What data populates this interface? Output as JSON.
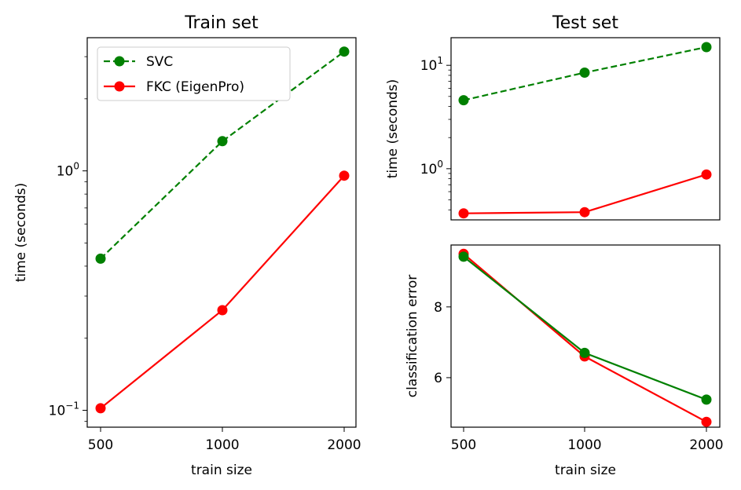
{
  "chart_data": [
    {
      "type": "line",
      "title": "Train set",
      "xlabel": "train size",
      "ylabel": "time (seconds)",
      "x": [
        500,
        1000,
        2000
      ],
      "xscale": "categorical",
      "yscale": "log",
      "ylim": [
        0.085,
        3.6
      ],
      "yticks": [
        {
          "value": 0.1,
          "base": "10",
          "exp": "−1"
        },
        {
          "value": 1,
          "base": "10",
          "exp": "0"
        }
      ],
      "legend": {
        "position": "top-left"
      },
      "series": [
        {
          "name": "SVC",
          "color": "#008000",
          "dashed": true,
          "values": [
            0.43,
            1.33,
            3.15
          ]
        },
        {
          "name": "FKC (EigenPro)",
          "color": "#ff0000",
          "dashed": false,
          "values": [
            0.102,
            0.262,
            0.955
          ]
        }
      ]
    },
    {
      "type": "line",
      "title": "Test set",
      "xlabel": "",
      "ylabel": "time (seconds)",
      "x": [
        500,
        1000,
        2000
      ],
      "xscale": "categorical",
      "yscale": "log",
      "ylim": [
        0.32,
        18.5
      ],
      "yticks": [
        {
          "value": 1,
          "base": "10",
          "exp": "0"
        },
        {
          "value": 10,
          "base": "10",
          "exp": "1"
        }
      ],
      "series": [
        {
          "color": "#008000",
          "dashed": true,
          "values": [
            4.6,
            8.5,
            15.0
          ]
        },
        {
          "color": "#ff0000",
          "dashed": false,
          "values": [
            0.37,
            0.38,
            0.88
          ]
        }
      ]
    },
    {
      "type": "line",
      "title": "",
      "xlabel": "train size",
      "ylabel": "classification error",
      "x": [
        500,
        1000,
        2000
      ],
      "xscale": "categorical",
      "yscale": "linear",
      "ylim": [
        4.6,
        9.75
      ],
      "yticks": [
        6,
        8
      ],
      "series": [
        {
          "color": "#ff0000",
          "dashed": false,
          "values": [
            9.5,
            6.6,
            4.75
          ]
        },
        {
          "color": "#008000",
          "dashed": false,
          "values": [
            9.42,
            6.7,
            5.38
          ]
        }
      ]
    }
  ]
}
